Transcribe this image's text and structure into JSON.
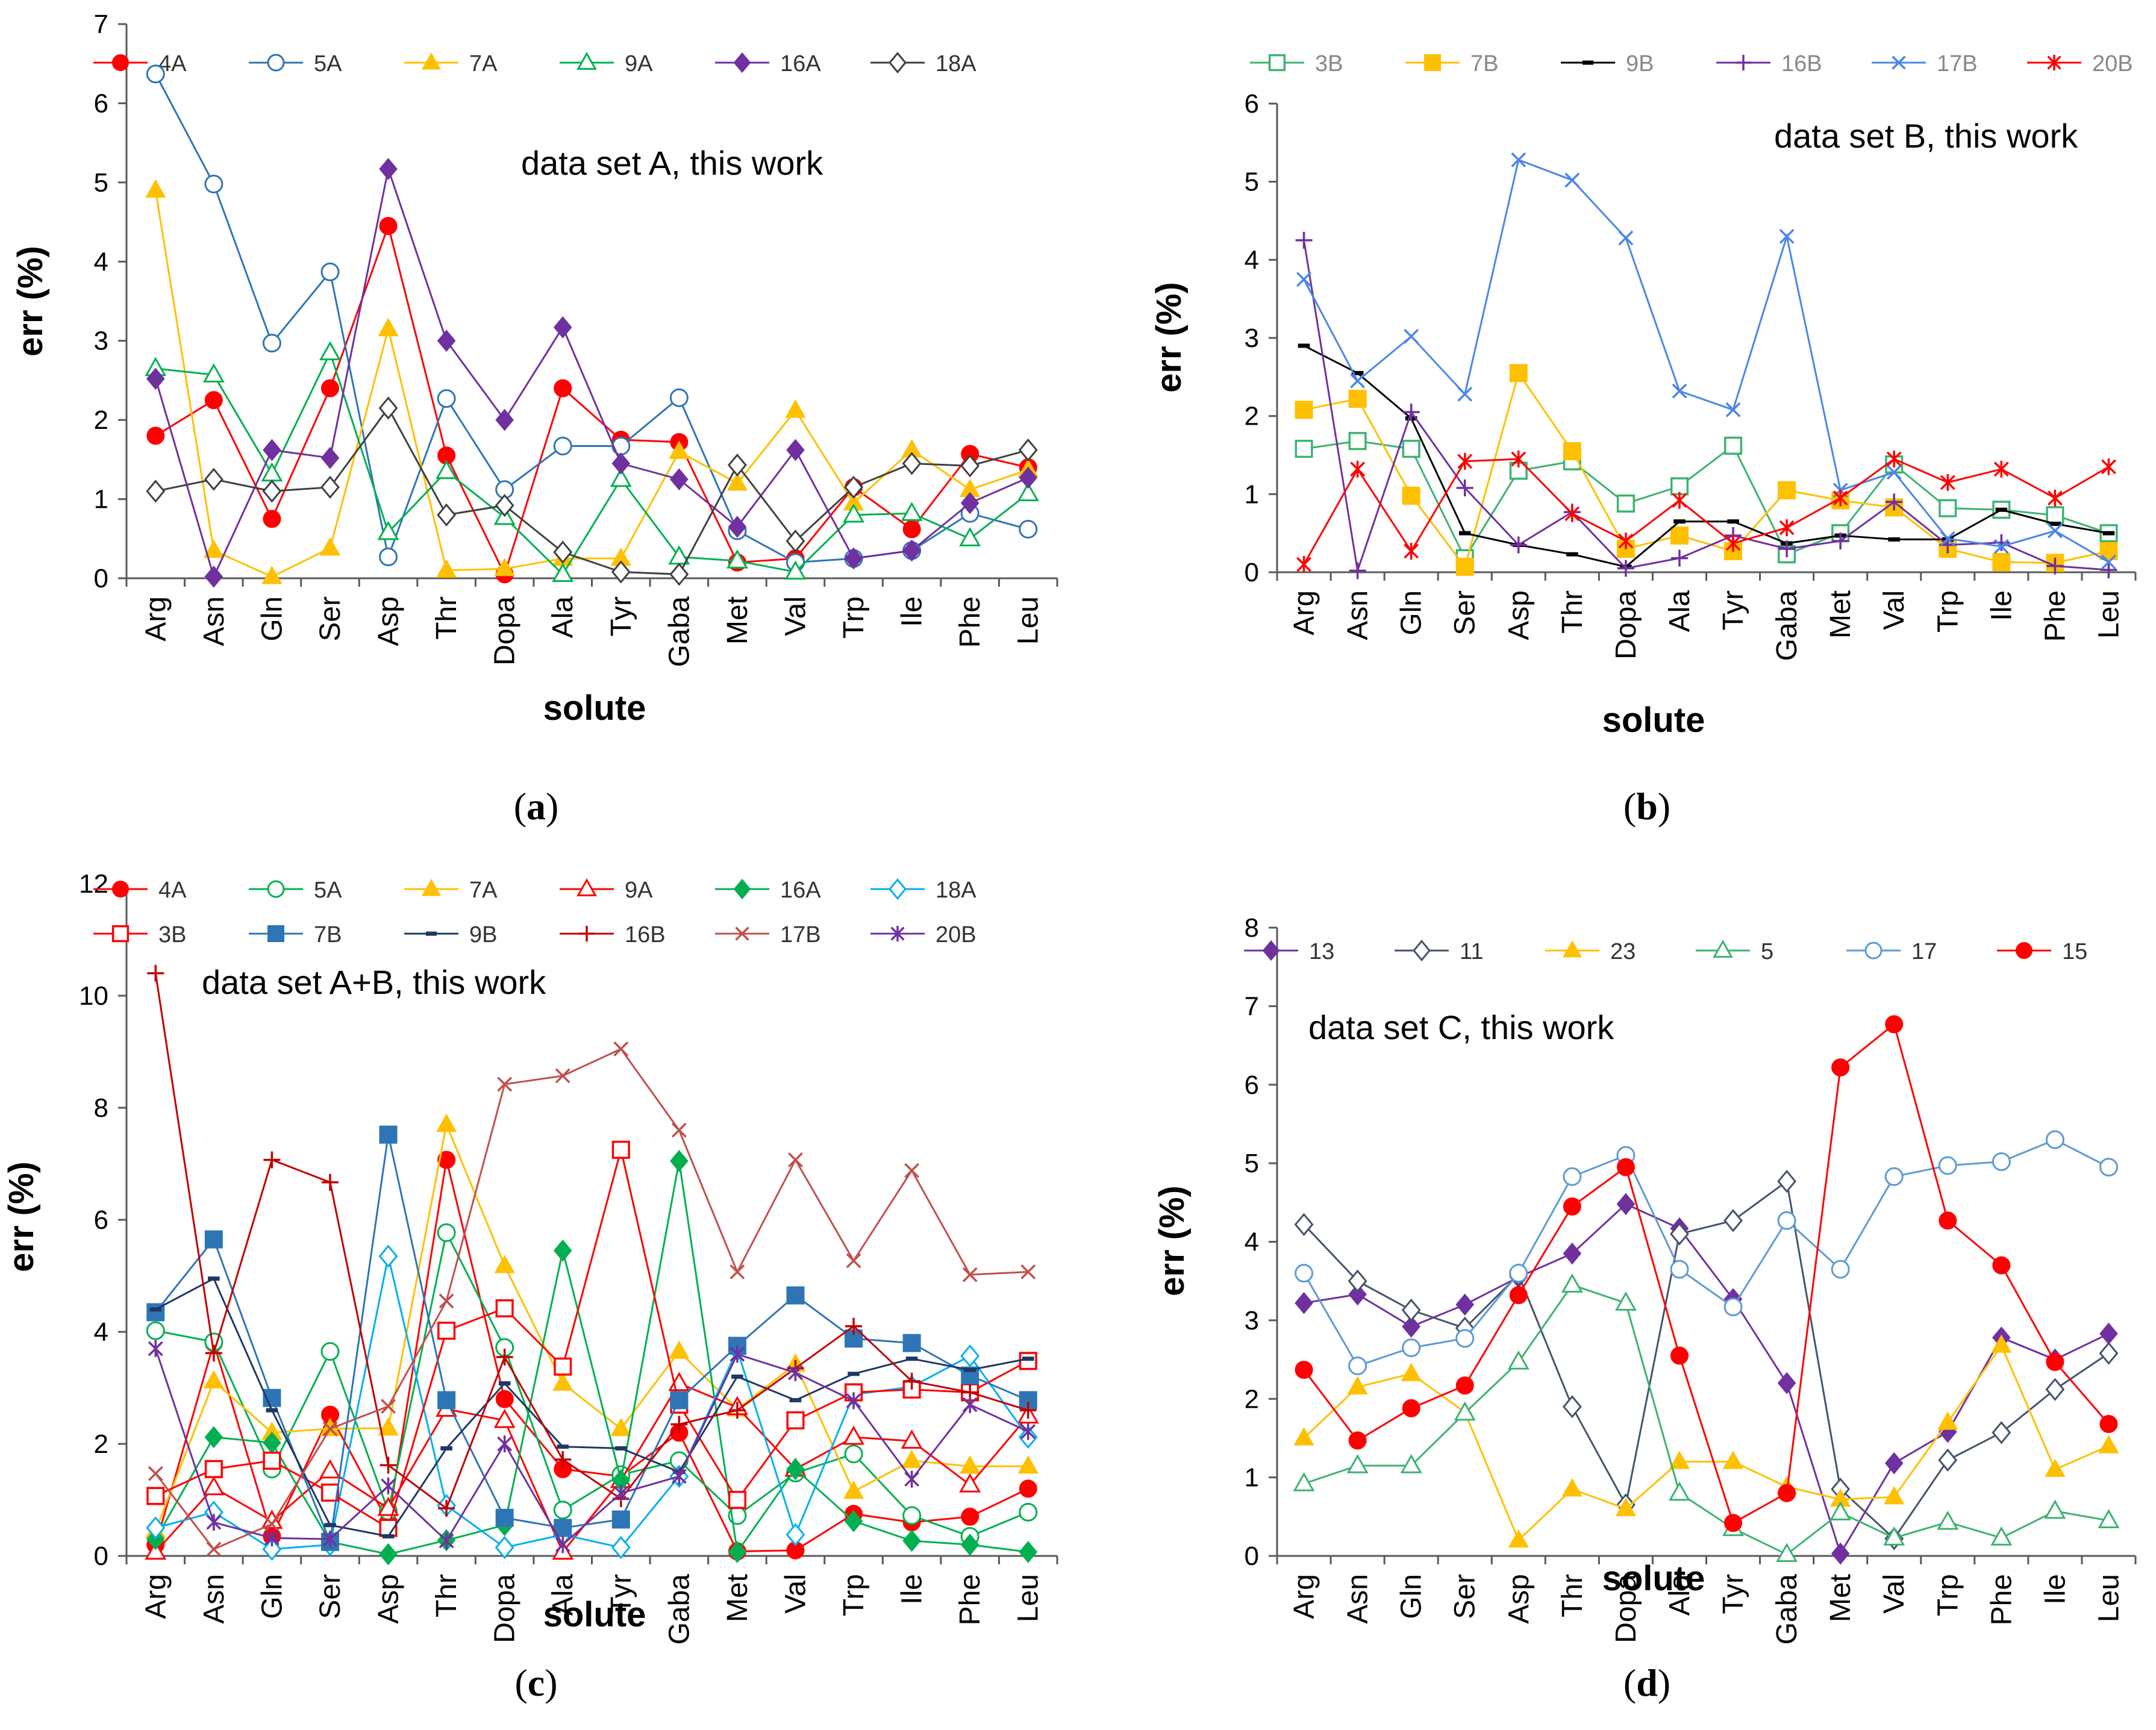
{
  "chart_data": [
    {
      "id": "a",
      "type": "line",
      "panel_label": "a",
      "annotation": "data set A, this work",
      "xlabel": "solute",
      "ylabel": "err (%)",
      "ylim": [
        0,
        7
      ],
      "yticks": [
        0,
        1,
        2,
        3,
        4,
        5,
        6,
        7
      ],
      "categories": [
        "Arg",
        "Asn",
        "Gln",
        "Ser",
        "Asp",
        "Thr",
        "Dopa",
        "Ala",
        "Tyr",
        "Gaba",
        "Met",
        "Val",
        "Trp",
        "Ile",
        "Phe",
        "Leu"
      ],
      "series": [
        {
          "name": "4A",
          "color": "#ff0000",
          "marker": "circle-filled",
          "values": [
            1.8,
            2.25,
            0.75,
            2.4,
            4.45,
            1.55,
            0.05,
            2.4,
            1.75,
            1.72,
            0.2,
            0.25,
            1.15,
            0.62,
            1.57,
            1.4
          ]
        },
        {
          "name": "5A",
          "color": "#2e75b6",
          "marker": "circle-open",
          "values": [
            6.37,
            4.98,
            2.97,
            3.87,
            0.27,
            2.27,
            1.12,
            1.67,
            1.67,
            2.28,
            0.6,
            0.2,
            0.25,
            0.35,
            0.82,
            0.62
          ]
        },
        {
          "name": "7A",
          "color": "#ffc000",
          "marker": "triangle-filled",
          "values": [
            4.9,
            0.35,
            0.02,
            0.38,
            3.15,
            0.1,
            0.12,
            0.25,
            0.25,
            1.6,
            1.2,
            2.12,
            0.95,
            1.62,
            1.12,
            1.37
          ]
        },
        {
          "name": "9A",
          "color": "#00b050",
          "marker": "triangle-open",
          "values": [
            2.65,
            2.57,
            1.32,
            2.85,
            0.58,
            1.35,
            0.77,
            0.05,
            1.25,
            0.27,
            0.22,
            0.08,
            0.8,
            0.82,
            0.5,
            1.07
          ]
        },
        {
          "name": "16A",
          "color": "#7030a0",
          "marker": "diamond-filled",
          "values": [
            2.52,
            0.02,
            1.62,
            1.52,
            5.17,
            3.0,
            2.0,
            3.17,
            1.45,
            1.25,
            0.65,
            1.62,
            0.25,
            0.35,
            0.95,
            1.27
          ]
        },
        {
          "name": "18A",
          "color": "#404040",
          "marker": "diamond-open",
          "values": [
            1.1,
            1.25,
            1.1,
            1.15,
            2.15,
            0.8,
            0.92,
            0.33,
            0.08,
            0.05,
            1.43,
            0.47,
            1.15,
            1.45,
            1.42,
            1.62
          ]
        }
      ]
    },
    {
      "id": "b",
      "type": "line",
      "panel_label": "b",
      "annotation": "data set B, this work",
      "xlabel": "solute",
      "ylabel": "err (%)",
      "ylim": [
        0,
        6
      ],
      "yticks": [
        0,
        1,
        2,
        3,
        4,
        5,
        6
      ],
      "categories": [
        "Arg",
        "Asn",
        "Gln",
        "Ser",
        "Asp",
        "Thr",
        "Dopa",
        "Ala",
        "Tyr",
        "Gaba",
        "Met",
        "Val",
        "Trp",
        "Ile",
        "Phe",
        "Leu"
      ],
      "series": [
        {
          "name": "3B",
          "color": "#3cb371",
          "marker": "square-open",
          "values": [
            1.58,
            1.68,
            1.58,
            0.18,
            1.3,
            1.42,
            0.88,
            1.1,
            1.62,
            0.23,
            0.5,
            1.38,
            0.82,
            0.8,
            0.73,
            0.5
          ]
        },
        {
          "name": "7B",
          "color": "#ffc000",
          "marker": "square-filled",
          "values": [
            2.08,
            2.22,
            0.98,
            0.07,
            2.55,
            1.55,
            0.3,
            0.47,
            0.27,
            1.05,
            0.92,
            0.83,
            0.3,
            0.13,
            0.12,
            0.27
          ]
        },
        {
          "name": "9B",
          "color": "#000000",
          "marker": "dash",
          "values": [
            2.9,
            2.55,
            1.97,
            0.5,
            0.35,
            0.23,
            0.07,
            0.65,
            0.65,
            0.37,
            0.47,
            0.42,
            0.42,
            0.8,
            0.62,
            0.5
          ]
        },
        {
          "name": "16B",
          "color": "#7030a0",
          "marker": "plus",
          "values": [
            4.25,
            0.02,
            2.05,
            1.08,
            0.35,
            0.77,
            0.05,
            0.18,
            0.47,
            0.3,
            0.4,
            0.9,
            0.35,
            0.38,
            0.08,
            0.03
          ]
        },
        {
          "name": "17B",
          "color": "#4a86e8",
          "marker": "x",
          "values": [
            3.75,
            2.45,
            3.02,
            2.28,
            5.28,
            5.02,
            4.28,
            2.32,
            2.08,
            4.3,
            1.05,
            1.28,
            0.43,
            0.33,
            0.53,
            0.13
          ]
        },
        {
          "name": "20B",
          "color": "#ff0000",
          "marker": "star",
          "values": [
            0.1,
            1.32,
            0.27,
            1.42,
            1.45,
            0.75,
            0.4,
            0.92,
            0.37,
            0.57,
            0.95,
            1.45,
            1.15,
            1.32,
            0.95,
            1.35
          ]
        }
      ]
    },
    {
      "id": "c",
      "type": "line",
      "panel_label": "c",
      "annotation": "data set A+B, this work",
      "xlabel": "solute",
      "ylabel": "err (%)",
      "ylim": [
        0,
        12
      ],
      "yticks": [
        0,
        2,
        4,
        6,
        8,
        10,
        12
      ],
      "categories": [
        "Arg",
        "Asn",
        "Gln",
        "Ser",
        "Asp",
        "Thr",
        "Dopa",
        "Ala",
        "Tyr",
        "Gaba",
        "Met",
        "Val",
        "Trp",
        "Ile",
        "Phe",
        "Leu"
      ],
      "series": [
        {
          "name": "4A",
          "color": "#ff0000",
          "marker": "circle-filled",
          "values": [
            0.2,
            3.8,
            0.35,
            2.52,
            0.6,
            7.07,
            2.8,
            1.55,
            1.42,
            2.2,
            0.08,
            0.1,
            0.75,
            0.6,
            0.7,
            1.2
          ]
        },
        {
          "name": "5A",
          "color": "#00b050",
          "marker": "circle-open",
          "values": [
            4.02,
            3.82,
            1.55,
            3.65,
            0.8,
            5.77,
            3.72,
            0.82,
            1.45,
            1.7,
            0.72,
            1.48,
            1.82,
            0.72,
            0.35,
            0.78
          ]
        },
        {
          "name": "7A",
          "color": "#ffc000",
          "marker": "triangle-filled",
          "values": [
            0.45,
            3.12,
            2.2,
            2.27,
            2.28,
            7.7,
            5.18,
            3.08,
            2.27,
            3.65,
            2.62,
            3.42,
            1.15,
            1.7,
            1.6,
            1.6
          ]
        },
        {
          "name": "9A",
          "color": "#ff0000",
          "marker": "triangle-open",
          "values": [
            0.07,
            1.22,
            0.62,
            1.52,
            0.85,
            2.62,
            2.42,
            0.07,
            1.35,
            3.08,
            2.65,
            1.55,
            2.12,
            2.05,
            1.27,
            2.5
          ]
        },
        {
          "name": "16A",
          "color": "#00b050",
          "marker": "diamond-filled",
          "values": [
            0.3,
            2.12,
            2.02,
            0.25,
            0.03,
            0.28,
            0.55,
            5.45,
            1.35,
            7.05,
            0.07,
            1.55,
            0.62,
            0.27,
            0.2,
            0.07
          ]
        },
        {
          "name": "18A",
          "color": "#00b0f0",
          "marker": "diamond-open",
          "values": [
            0.5,
            0.78,
            0.12,
            0.2,
            5.35,
            0.9,
            0.15,
            0.38,
            0.15,
            1.42,
            3.68,
            0.38,
            2.88,
            3.02,
            3.57,
            2.12
          ]
        },
        {
          "name": "3B",
          "color": "#ff0000",
          "marker": "square-open",
          "values": [
            1.07,
            1.55,
            1.7,
            1.13,
            0.5,
            4.02,
            4.42,
            3.38,
            7.25,
            2.7,
            1.0,
            2.42,
            2.92,
            2.97,
            2.92,
            3.48
          ]
        },
        {
          "name": "7B",
          "color": "#2e75b6",
          "marker": "square-filled",
          "values": [
            4.35,
            5.65,
            2.82,
            0.25,
            7.52,
            2.78,
            0.68,
            0.5,
            0.65,
            2.78,
            3.75,
            4.65,
            3.88,
            3.8,
            3.22,
            2.78
          ]
        },
        {
          "name": "9B",
          "color": "#1f3864",
          "marker": "dash",
          "values": [
            4.4,
            4.95,
            2.6,
            0.55,
            0.35,
            1.92,
            3.08,
            1.95,
            1.92,
            1.5,
            3.2,
            2.78,
            3.25,
            3.52,
            3.32,
            3.52
          ]
        },
        {
          "name": "16B",
          "color": "#c00000",
          "marker": "plus",
          "values": [
            10.4,
            3.62,
            7.07,
            6.67,
            1.62,
            0.85,
            3.55,
            1.72,
            1.02,
            2.35,
            2.6,
            3.35,
            4.1,
            3.12,
            2.92,
            2.6
          ]
        },
        {
          "name": "17B",
          "color": "#c0504d",
          "marker": "x",
          "values": [
            1.47,
            0.12,
            0.57,
            2.27,
            2.67,
            4.55,
            8.42,
            8.57,
            9.05,
            7.6,
            5.07,
            7.07,
            5.27,
            6.88,
            5.02,
            5.07
          ]
        },
        {
          "name": "20B",
          "color": "#7030a0",
          "marker": "star",
          "values": [
            3.7,
            0.6,
            0.32,
            0.3,
            1.25,
            0.27,
            2.0,
            0.2,
            1.12,
            1.42,
            3.6,
            3.27,
            2.77,
            1.37,
            2.7,
            2.22
          ]
        }
      ]
    },
    {
      "id": "d",
      "type": "line",
      "panel_label": "d",
      "annotation": "data set C, this work",
      "xlabel": "solute",
      "ylabel": "err (%)",
      "ylim": [
        0,
        8
      ],
      "yticks": [
        0,
        1,
        2,
        3,
        4,
        5,
        6,
        7,
        8
      ],
      "categories": [
        "Arg",
        "Asn",
        "Gln",
        "Ser",
        "Asp",
        "Thr",
        "Dopa",
        "Ala",
        "Tyr",
        "Gaba",
        "Met",
        "Val",
        "Trp",
        "Phe",
        "Ile",
        "Leu"
      ],
      "series": [
        {
          "name": "13",
          "color": "#7030a0",
          "marker": "diamond-filled",
          "values": [
            3.22,
            3.33,
            2.92,
            3.2,
            3.55,
            3.85,
            4.48,
            4.17,
            3.27,
            2.2,
            0.03,
            1.18,
            1.58,
            2.78,
            2.5,
            2.83
          ]
        },
        {
          "name": "11",
          "color": "#44546a",
          "marker": "diamond-open",
          "values": [
            4.22,
            3.5,
            3.13,
            2.9,
            3.58,
            1.9,
            0.65,
            4.1,
            4.27,
            4.77,
            0.85,
            0.22,
            1.22,
            1.57,
            2.12,
            2.58
          ]
        },
        {
          "name": "23",
          "color": "#ffc000",
          "marker": "triangle-filled",
          "values": [
            1.5,
            2.15,
            2.32,
            1.83,
            0.2,
            0.85,
            0.6,
            1.2,
            1.2,
            0.88,
            0.72,
            0.75,
            1.7,
            2.68,
            1.1,
            1.4
          ]
        },
        {
          "name": "5",
          "color": "#3cb371",
          "marker": "triangle-open",
          "values": [
            0.92,
            1.15,
            1.15,
            1.82,
            2.47,
            3.45,
            3.22,
            0.8,
            0.35,
            0.02,
            0.55,
            0.23,
            0.43,
            0.23,
            0.57,
            0.45
          ]
        },
        {
          "name": "17",
          "color": "#5b9bd5",
          "marker": "circle-open",
          "values": [
            3.6,
            2.42,
            2.65,
            2.77,
            3.6,
            4.83,
            5.1,
            3.65,
            3.17,
            4.27,
            3.65,
            4.83,
            4.97,
            5.02,
            5.3,
            4.95
          ]
        },
        {
          "name": "15",
          "color": "#ff0000",
          "marker": "circle-filled",
          "values": [
            2.37,
            1.47,
            1.88,
            2.17,
            3.32,
            4.45,
            4.95,
            2.55,
            0.42,
            0.8,
            6.22,
            6.77,
            4.27,
            3.7,
            2.47,
            1.68
          ]
        }
      ]
    }
  ]
}
